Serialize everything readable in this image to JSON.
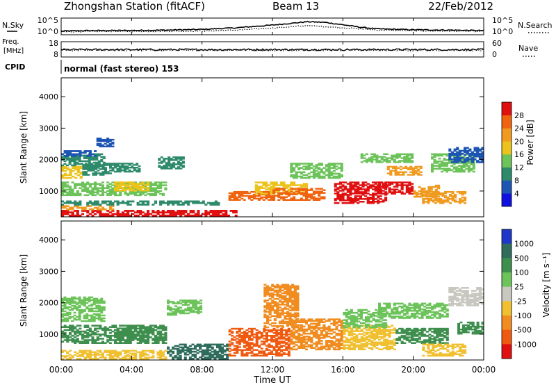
{
  "header": {
    "station": "Zhongshan Station (fitACF)",
    "beam": "Beam 13",
    "date": "22/Feb/2012"
  },
  "side_labels": {
    "nsky": "N.Sky",
    "nsearch": "N.Search",
    "freq_line1": "Freq.",
    "freq_line2": "[MHz]",
    "nave": "Nave",
    "cpid": "CPID",
    "cpid_mode": "normal (fast stereo) 153"
  },
  "chart_data": [
    {
      "id": "noise",
      "type": "line",
      "left_ticks": [
        "10^5",
        "10^0"
      ],
      "right_ticks": [
        "10^5",
        "10^0"
      ],
      "series": [
        {
          "name": "N.Sky",
          "style": "solid",
          "x_hours": [
            0,
            1,
            2,
            4,
            6,
            8,
            10,
            12,
            13,
            14,
            15,
            16,
            17,
            18,
            20,
            22,
            24
          ],
          "level": [
            0.22,
            0.24,
            0.25,
            0.26,
            0.28,
            0.32,
            0.42,
            0.58,
            0.68,
            0.78,
            0.74,
            0.6,
            0.45,
            0.35,
            0.3,
            0.28,
            0.25
          ]
        },
        {
          "name": "N.Search",
          "style": "dotted",
          "x_hours": [
            0,
            2,
            4,
            6,
            8,
            10,
            12,
            14,
            16,
            18,
            20,
            22,
            24
          ],
          "level": [
            0.18,
            0.2,
            0.2,
            0.21,
            0.22,
            0.28,
            0.4,
            0.55,
            0.42,
            0.28,
            0.24,
            0.22,
            0.2
          ]
        }
      ]
    },
    {
      "id": "frequency",
      "type": "line",
      "left_ticks": [
        "18",
        "8"
      ],
      "right_ticks": [
        "60",
        "0"
      ],
      "series": [
        {
          "name": "Freq.",
          "style": "solid",
          "level": 0.48
        },
        {
          "name": "Nave",
          "style": "dotted",
          "level": 0.45
        }
      ]
    },
    {
      "id": "power",
      "type": "heatmap",
      "ylabel": "Slant Range [km]",
      "yticks": [
        1000,
        2000,
        3000,
        4000
      ],
      "ylim": [
        180,
        4600
      ],
      "xlim": [
        0,
        24
      ],
      "colorbar": {
        "label": "Power [dB]",
        "ticks": [
          4,
          8,
          12,
          16,
          20,
          24,
          28
        ],
        "range": [
          0,
          32
        ],
        "colors": [
          "#1010e0",
          "#1d55b3",
          "#2d8a6a",
          "#6cc35a",
          "#ecc31c",
          "#f09a20",
          "#f06410",
          "#e01010"
        ]
      },
      "regions": [
        {
          "t": [
            0.0,
            10.0
          ],
          "r": [
            200,
            400
          ],
          "value": 29
        },
        {
          "t": [
            0.0,
            3.0
          ],
          "r": [
            400,
            550
          ],
          "value": 22
        },
        {
          "t": [
            0.0,
            9.0
          ],
          "r": [
            550,
            700
          ],
          "value": 9
        },
        {
          "t": [
            0.0,
            1.2
          ],
          "r": [
            1400,
            1800
          ],
          "value": 18
        },
        {
          "t": [
            1.2,
            3.0
          ],
          "r": [
            1500,
            1900
          ],
          "value": 11
        },
        {
          "t": [
            0.0,
            2.5
          ],
          "r": [
            1800,
            2200
          ],
          "value": 8
        },
        {
          "t": [
            0.0,
            6.0
          ],
          "r": [
            850,
            1300
          ],
          "value": 12
        },
        {
          "t": [
            3.0,
            5.0
          ],
          "r": [
            1000,
            1300
          ],
          "value": 17
        },
        {
          "t": [
            3.0,
            4.5
          ],
          "r": [
            1600,
            1900
          ],
          "value": 8
        },
        {
          "t": [
            5.5,
            7.0
          ],
          "r": [
            1700,
            2100
          ],
          "value": 9
        },
        {
          "t": [
            9.5,
            12.0
          ],
          "r": [
            700,
            1000
          ],
          "value": 24
        },
        {
          "t": [
            11.0,
            14.0
          ],
          "r": [
            900,
            1300
          ],
          "value": 19
        },
        {
          "t": [
            12.0,
            15.0
          ],
          "r": [
            700,
            1100
          ],
          "value": 26
        },
        {
          "t": [
            13.0,
            16.0
          ],
          "r": [
            1400,
            1900
          ],
          "value": 13
        },
        {
          "t": [
            15.5,
            18.5
          ],
          "r": [
            600,
            1300
          ],
          "value": 28
        },
        {
          "t": [
            18.0,
            20.0
          ],
          "r": [
            900,
            1300
          ],
          "value": 29
        },
        {
          "t": [
            18.5,
            20.5
          ],
          "r": [
            1500,
            1800
          ],
          "value": 23
        },
        {
          "t": [
            20.0,
            21.5
          ],
          "r": [
            800,
            1200
          ],
          "value": 20
        },
        {
          "t": [
            20.5,
            23.0
          ],
          "r": [
            600,
            1000
          ],
          "value": 21
        },
        {
          "t": [
            21.0,
            23.5
          ],
          "r": [
            1600,
            2200
          ],
          "value": 14
        },
        {
          "t": [
            22.0,
            24.0
          ],
          "r": [
            1900,
            2400
          ],
          "value": 7
        },
        {
          "t": [
            17.0,
            20.0
          ],
          "r": [
            1900,
            2200
          ],
          "value": 12
        },
        {
          "t": [
            2.0,
            3.0
          ],
          "r": [
            2400,
            2700
          ],
          "value": 6
        },
        {
          "t": [
            0.0,
            2.0
          ],
          "r": [
            2100,
            2300
          ],
          "value": 6
        }
      ]
    },
    {
      "id": "velocity",
      "type": "heatmap",
      "ylabel": "Slant Range [km]",
      "yticks": [
        1000,
        2000,
        3000,
        4000
      ],
      "ylim": [
        180,
        4600
      ],
      "xlim": [
        0,
        24
      ],
      "colorbar": {
        "label": "Velocity [m s⁻¹]",
        "ticks": [
          "1000",
          "500",
          "100",
          "25",
          "-25",
          "-100",
          "-500",
          "-1000"
        ],
        "colors": [
          "#1d38c8",
          "#2f6c5c",
          "#3e8e4e",
          "#6cc35a",
          "#c8c8c0",
          "#f0c030",
          "#f08c20",
          "#f05a10",
          "#e01010"
        ]
      },
      "regions": [
        {
          "t": [
            0.0,
            2.5
          ],
          "r": [
            1400,
            2200
          ],
          "value": 25
        },
        {
          "t": [
            0.0,
            6.0
          ],
          "r": [
            700,
            1300
          ],
          "value": 200
        },
        {
          "t": [
            3.0,
            5.0
          ],
          "r": [
            900,
            1300
          ],
          "value": 300
        },
        {
          "t": [
            6.0,
            9.5
          ],
          "r": [
            200,
            700
          ],
          "value": 800
        },
        {
          "t": [
            0.0,
            6.0
          ],
          "r": [
            200,
            500
          ],
          "value": -50
        },
        {
          "t": [
            9.5,
            13.0
          ],
          "r": [
            300,
            1200
          ],
          "value": -600
        },
        {
          "t": [
            11.5,
            13.5
          ],
          "r": [
            1200,
            2600
          ],
          "value": -400
        },
        {
          "t": [
            13.0,
            16.0
          ],
          "r": [
            500,
            1500
          ],
          "value": -300
        },
        {
          "t": [
            16.0,
            19.0
          ],
          "r": [
            500,
            1300
          ],
          "value": -80
        },
        {
          "t": [
            16.0,
            18.5
          ],
          "r": [
            1200,
            1800
          ],
          "value": 50
        },
        {
          "t": [
            18.0,
            22.0
          ],
          "r": [
            1500,
            2000
          ],
          "value": 80
        },
        {
          "t": [
            19.0,
            22.0
          ],
          "r": [
            700,
            1200
          ],
          "value": 200
        },
        {
          "t": [
            20.5,
            23.0
          ],
          "r": [
            300,
            700
          ],
          "value": -100
        },
        {
          "t": [
            22.0,
            24.0
          ],
          "r": [
            1900,
            2500
          ],
          "value": 20
        },
        {
          "t": [
            22.5,
            24.0
          ],
          "r": [
            1000,
            1400
          ],
          "value": 400
        },
        {
          "t": [
            6.0,
            8.0
          ],
          "r": [
            1600,
            2100
          ],
          "value": 60
        }
      ]
    }
  ],
  "xaxis": {
    "ticks": [
      "00:00",
      "04:00",
      "08:00",
      "12:00",
      "16:00",
      "20:00",
      "00:00"
    ],
    "label": "Time UT"
  },
  "colors": {
    "axis": "#000000",
    "background": "#ffffff"
  }
}
